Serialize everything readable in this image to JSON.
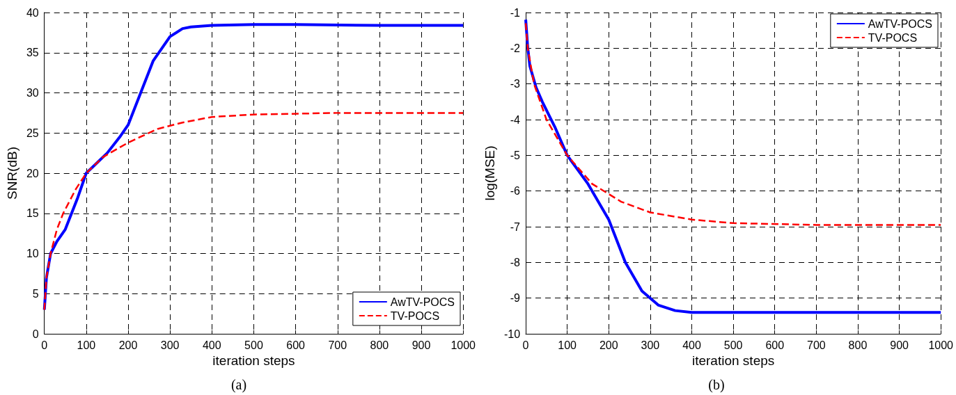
{
  "chart_data": [
    {
      "type": "line",
      "title": "(a)",
      "xlabel": "iteration steps",
      "ylabel": "SNR(dB)",
      "xlim": [
        0,
        1000
      ],
      "xticks": [
        0,
        100,
        200,
        300,
        400,
        500,
        600,
        700,
        800,
        900,
        1000
      ],
      "ylim": [
        0,
        40
      ],
      "yticks": [
        0,
        5,
        10,
        15,
        20,
        25,
        30,
        35,
        40
      ],
      "grid": true,
      "legend": "bottom right",
      "marker": "none",
      "series": [
        {
          "name": "AwTV-POCS",
          "color": "#0000ff",
          "line_style": "solid",
          "x": [
            0,
            5,
            15,
            30,
            50,
            80,
            100,
            150,
            180,
            200,
            230,
            260,
            300,
            330,
            350,
            400,
            500,
            600,
            800,
            1000
          ],
          "values": [
            3,
            7,
            10,
            11.5,
            13,
            17,
            20,
            22.5,
            24.5,
            26,
            30,
            34,
            37,
            38,
            38.2,
            38.4,
            38.5,
            38.5,
            38.4,
            38.4
          ]
        },
        {
          "name": "TV-POCS",
          "color": "#ff0000",
          "line_style": "dashed",
          "x": [
            0,
            5,
            15,
            30,
            45,
            75,
            100,
            140,
            200,
            270,
            330,
            400,
            500,
            700,
            800,
            1000
          ],
          "values": [
            3,
            7,
            10,
            13,
            15,
            18,
            20,
            22,
            23.8,
            25.5,
            26.3,
            27,
            27.3,
            27.5,
            27.5,
            27.5
          ]
        }
      ]
    },
    {
      "type": "line",
      "title": "(b)",
      "xlabel": "iteration steps",
      "ylabel": "log(MSE)",
      "xlim": [
        0,
        1000
      ],
      "xticks": [
        0,
        100,
        200,
        300,
        400,
        500,
        600,
        700,
        800,
        900,
        1000
      ],
      "ylim": [
        -10,
        -1
      ],
      "yticks": [
        -10,
        -9,
        -8,
        -7,
        -6,
        -5,
        -4,
        -3,
        -2,
        -1
      ],
      "grid": true,
      "legend": "top right",
      "marker": "none",
      "series": [
        {
          "name": "AwTV-POCS",
          "color": "#0000ff",
          "line_style": "solid",
          "x": [
            0,
            5,
            10,
            25,
            40,
            70,
            100,
            150,
            200,
            240,
            280,
            320,
            360,
            400,
            600,
            1000
          ],
          "values": [
            -1.2,
            -2,
            -2.5,
            -3.1,
            -3.5,
            -4.2,
            -5,
            -5.8,
            -6.8,
            -8,
            -8.8,
            -9.2,
            -9.35,
            -9.4,
            -9.4,
            -9.4
          ]
        },
        {
          "name": "TV-POCS",
          "color": "#ff0000",
          "line_style": "dashed",
          "x": [
            0,
            5,
            20,
            50,
            100,
            160,
            230,
            300,
            400,
            500,
            700,
            1000
          ],
          "values": [
            -1.3,
            -2,
            -3,
            -4,
            -5,
            -5.8,
            -6.3,
            -6.6,
            -6.8,
            -6.9,
            -6.95,
            -6.95
          ]
        }
      ]
    }
  ]
}
